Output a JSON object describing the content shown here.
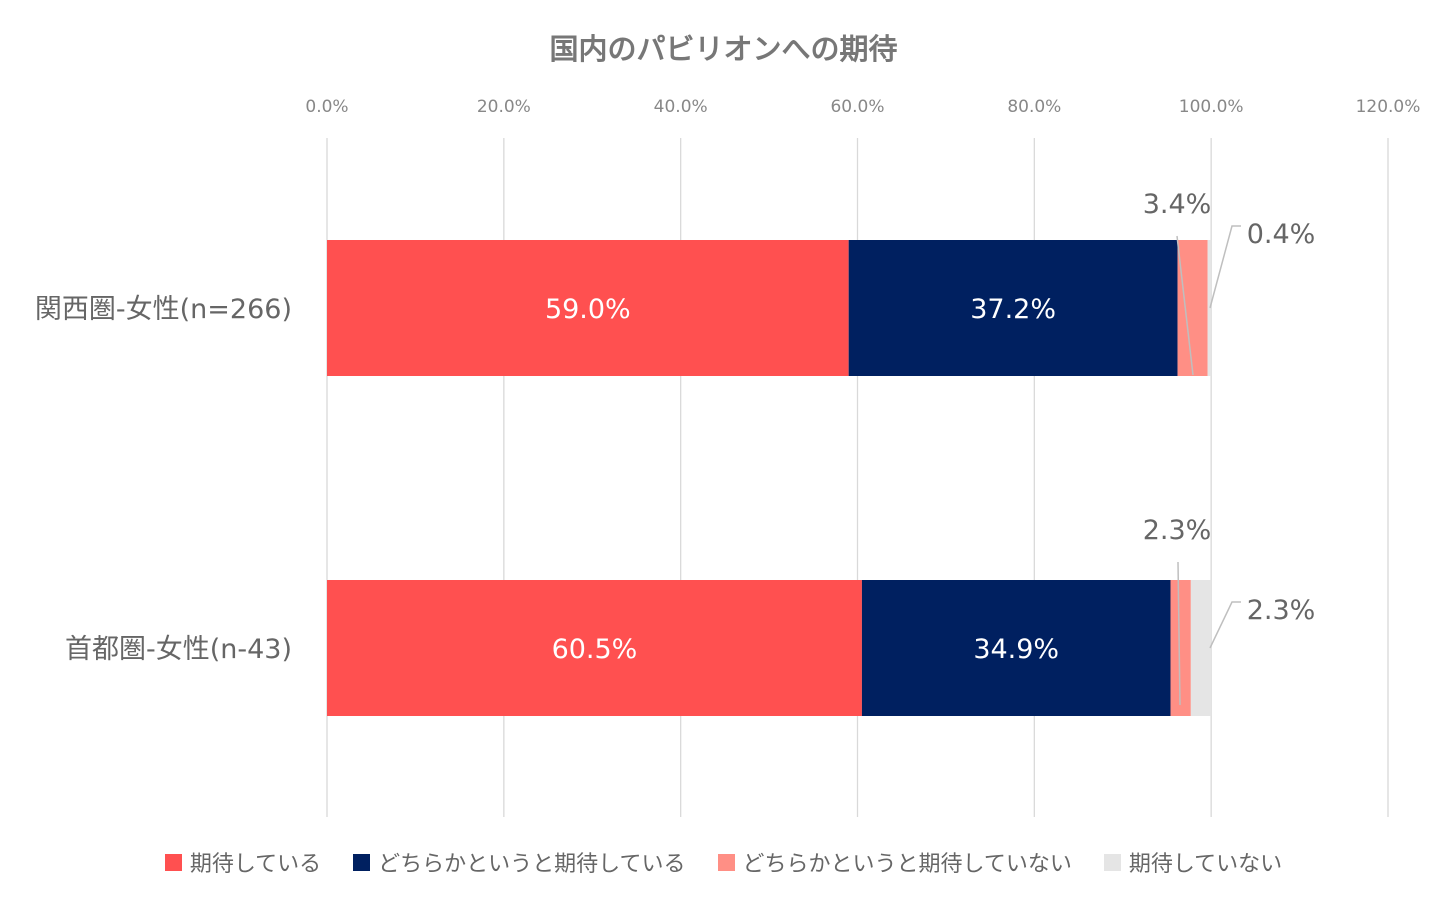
{
  "chart_data": {
    "type": "bar",
    "orientation": "horizontal",
    "stacked": true,
    "title": "国内のパビリオンへの期待",
    "categories": [
      "関西圏-女性(n=266)",
      "首都圏-女性(n-43)"
    ],
    "series": [
      {
        "name": "期待している",
        "values": [
          59.0,
          60.5
        ],
        "labels": [
          "59.0%",
          "60.5%"
        ],
        "color": "#ff5050"
      },
      {
        "name": "どちらかというと期待している",
        "values": [
          37.2,
          34.9
        ],
        "labels": [
          "37.2%",
          "34.9%"
        ],
        "color": "#002060"
      },
      {
        "name": "どちらかというと期待していない",
        "values": [
          3.4,
          2.3
        ],
        "labels": [
          "3.4%",
          "2.3%"
        ],
        "color": "#ff8f85"
      },
      {
        "name": "期待していない",
        "values": [
          0.4,
          2.3
        ],
        "labels": [
          "0.4%",
          "2.3%"
        ],
        "color": "#e5e5e5"
      }
    ],
    "xlim": [
      0,
      120
    ],
    "xticks": [
      "0.0%",
      "20.0%",
      "40.0%",
      "60.0%",
      "80.0%",
      "100.0%",
      "120.0%"
    ],
    "grid": true,
    "legend_position": "bottom"
  }
}
